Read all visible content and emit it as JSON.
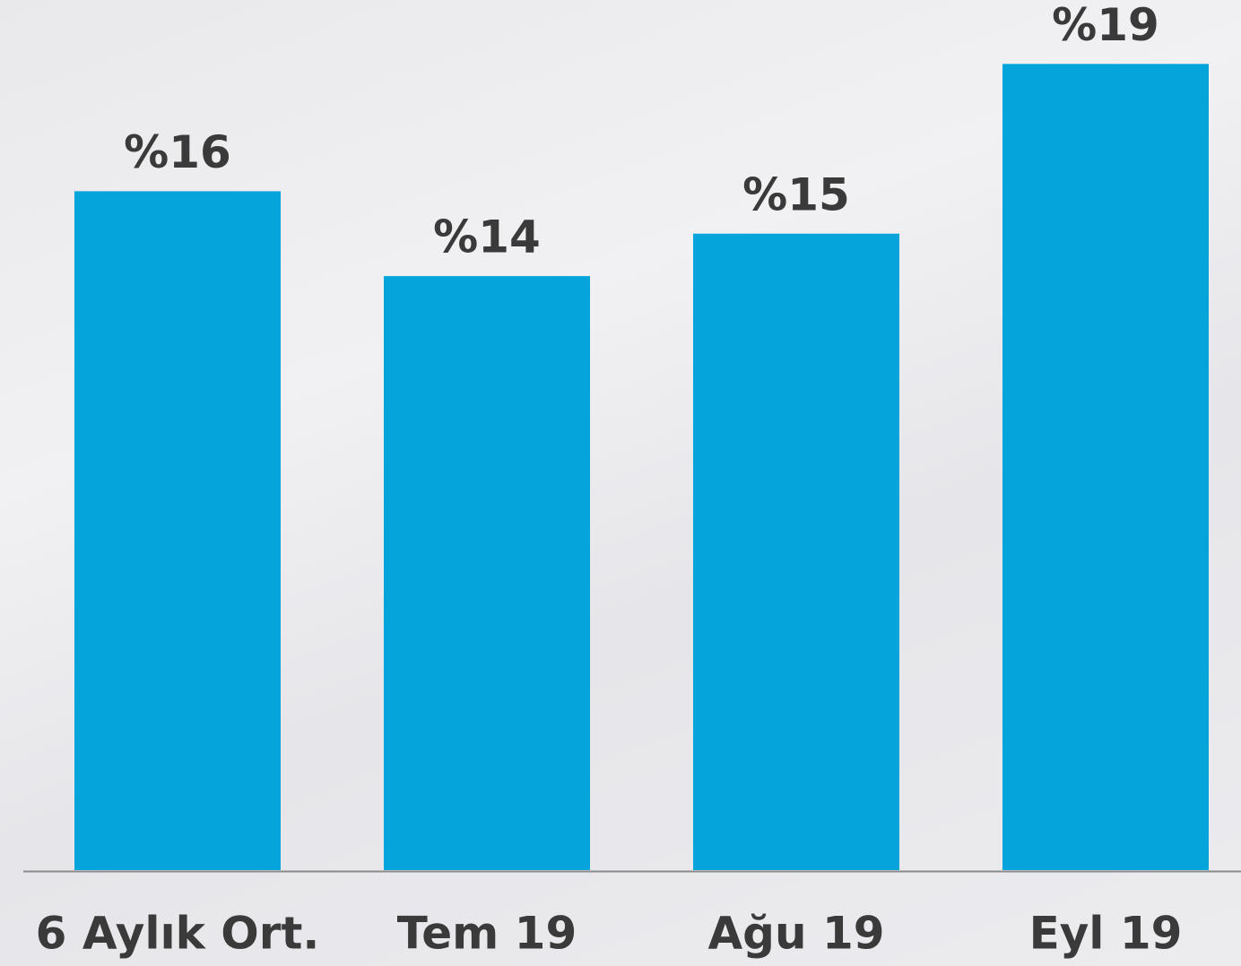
{
  "chart_data": {
    "type": "bar",
    "categories": [
      "6 Aylık Ort.",
      "Tem 19",
      "Ağu 19",
      "Eyl 19"
    ],
    "values": [
      16,
      14,
      15,
      19
    ],
    "value_labels": [
      "%16",
      "%14",
      "%15",
      "%19"
    ],
    "color": "#05a5dc",
    "ylim": [
      0,
      20
    ]
  }
}
